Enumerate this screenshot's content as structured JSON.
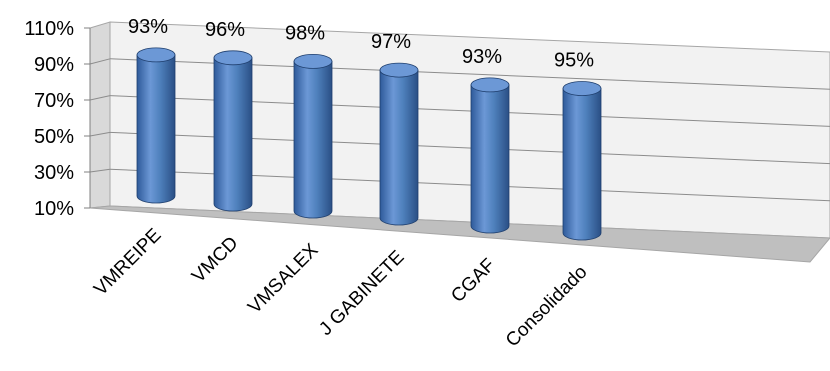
{
  "chart_data": {
    "type": "bar",
    "style": "3d-cylinder",
    "categories": [
      "VMREIPE",
      "VMCD",
      "VMSALEX",
      "J GABINETE",
      "CGAF",
      "Consolidado"
    ],
    "values": [
      93,
      96,
      98,
      97,
      93,
      95
    ],
    "data_labels": [
      "93%",
      "96%",
      "98%",
      "97%",
      "93%",
      "95%"
    ],
    "y_ticks": [
      "110%",
      "90%",
      "70%",
      "50%",
      "30%",
      "10%"
    ],
    "ylim": [
      10,
      110
    ],
    "grid": true,
    "legend": "none",
    "colors": {
      "bar": "#4F81BD",
      "bar_dark": "#2E5A9A",
      "bar_top": "#6C98D6",
      "wall": "#F2F2F2",
      "floor": "#BFBFBF",
      "gridline": "#8C8C8C"
    }
  }
}
